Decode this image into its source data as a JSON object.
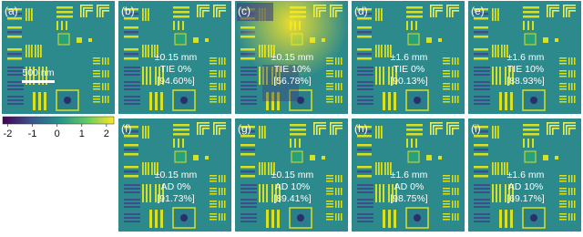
{
  "panels": [
    {
      "label": "(a)",
      "scale_bar": "500 nm"
    },
    {
      "label": "(b)",
      "lines": [
        "±0.15 mm",
        "TIE 0%",
        "[94.60%]"
      ]
    },
    {
      "label": "(c)",
      "lines": [
        "±0.15 mm",
        "TIE 10%",
        "[56.78%]"
      ]
    },
    {
      "label": "(d)",
      "lines": [
        "±1.6 mm",
        "TIE 0%",
        "[90.13%]"
      ]
    },
    {
      "label": "(e)",
      "lines": [
        "±1.6 mm",
        "TIE 10%",
        "[88.93%]"
      ]
    },
    {
      "label": "(f)",
      "lines": [
        "±0.15 mm",
        "AD 0%",
        "[91.73%]"
      ]
    },
    {
      "label": "(g)",
      "lines": [
        "±0.15 mm",
        "AD 10%",
        "[89.41%]"
      ]
    },
    {
      "label": "(h)",
      "lines": [
        "±1.6 mm",
        "AD 0%",
        "[98.75%]"
      ]
    },
    {
      "label": "(i)",
      "lines": [
        "±1.6 mm",
        "AD 10%",
        "[69.17%]"
      ]
    }
  ],
  "colorbar": {
    "lim": [
      -2.2,
      2.3
    ],
    "ticks": [
      -2,
      -1,
      0,
      1,
      2
    ]
  }
}
